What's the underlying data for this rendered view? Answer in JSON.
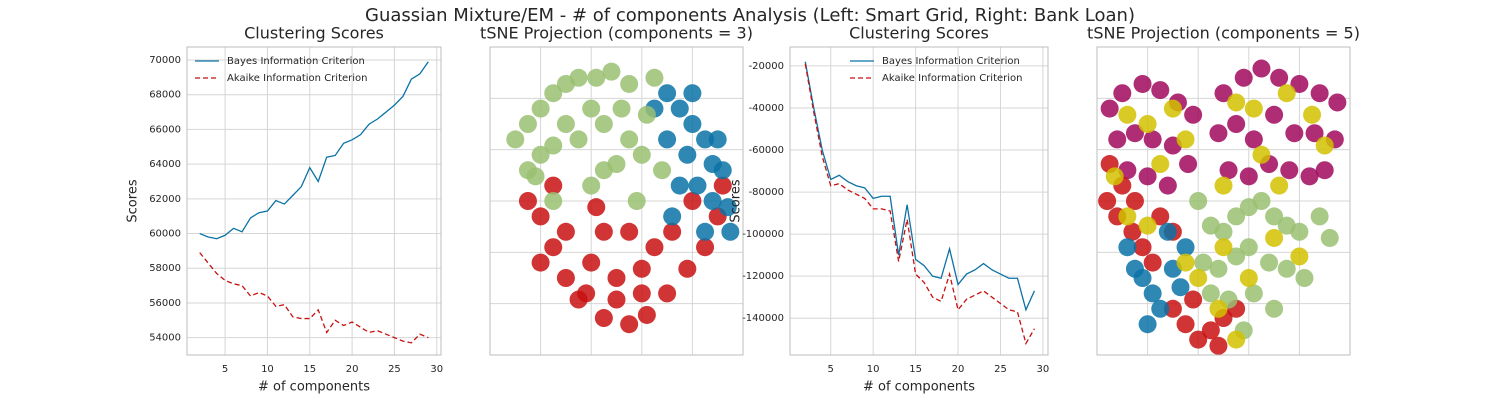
{
  "title": "Guassian Mixture/EM - # of components Analysis (Left: Smart Grid, Right: Bank Loan)",
  "chart_data": [
    {
      "type": "line",
      "title": "Clustering Scores",
      "xlabel": "# of components",
      "ylabel": "Scores",
      "x": [
        2,
        3,
        4,
        5,
        6,
        7,
        8,
        9,
        10,
        11,
        12,
        13,
        14,
        15,
        16,
        17,
        18,
        19,
        20,
        21,
        22,
        23,
        24,
        25,
        26,
        27,
        28,
        29
      ],
      "series": [
        {
          "name": "Bayes Information Criterion",
          "color": "#0b72a6",
          "linestyle": "solid",
          "values": [
            60000,
            59800,
            59700,
            59900,
            60300,
            60100,
            60900,
            61200,
            61300,
            61900,
            61700,
            62200,
            62700,
            63800,
            63000,
            64400,
            64500,
            65200,
            65400,
            65700,
            66300,
            66600,
            67000,
            67400,
            67900,
            68900,
            69200,
            69900
          ]
        },
        {
          "name": "Akaike Information Criterion",
          "color": "#c81010",
          "linestyle": "dashed",
          "values": [
            58900,
            58300,
            57700,
            57300,
            57100,
            57000,
            56400,
            56600,
            56400,
            55800,
            55900,
            55200,
            55100,
            55100,
            55600,
            54300,
            55000,
            54700,
            54900,
            54600,
            54300,
            54400,
            54200,
            54000,
            53800,
            53700,
            54200,
            54000
          ]
        }
      ],
      "xlim": [
        0.5,
        30.5
      ],
      "xticks": [
        5,
        10,
        15,
        20,
        25,
        30
      ],
      "ylim": [
        53000,
        70750
      ],
      "yticks": [
        54000,
        56000,
        58000,
        60000,
        62000,
        64000,
        66000,
        68000,
        70000
      ],
      "grid": true,
      "legend": "upper left"
    },
    {
      "type": "scatter",
      "title": "tSNE Projection (components = 3)",
      "xlim": [
        0,
        100
      ],
      "ylim": [
        0,
        100
      ],
      "series": [
        {
          "color": "#c81010",
          "x": [
            20,
            25,
            30,
            35,
            45,
            55,
            62,
            70,
            78,
            85,
            90,
            40,
            50,
            60,
            30,
            45,
            55,
            65,
            72,
            25,
            15,
            38,
            50,
            80,
            92,
            20,
            60,
            42
          ],
          "y": [
            45,
            35,
            25,
            18,
            12,
            10,
            13,
            20,
            28,
            35,
            45,
            30,
            25,
            28,
            40,
            40,
            40,
            35,
            40,
            55,
            50,
            20,
            18,
            50,
            55,
            30,
            20,
            48
          ]
        },
        {
          "color": "#0b72a6",
          "x": [
            70,
            75,
            80,
            85,
            88,
            92,
            90,
            78,
            82,
            88,
            94,
            75,
            70,
            65,
            80,
            95,
            85,
            72
          ],
          "y": [
            85,
            80,
            75,
            70,
            62,
            60,
            70,
            65,
            55,
            50,
            48,
            55,
            70,
            80,
            85,
            40,
            40,
            45
          ]
        },
        {
          "color": "#9abf72",
          "x": [
            10,
            15,
            20,
            25,
            30,
            35,
            42,
            48,
            40,
            30,
            20,
            15,
            25,
            35,
            45,
            52,
            55,
            50,
            60,
            58,
            45,
            40,
            62,
            68,
            25,
            18,
            55,
            65
          ],
          "y": [
            70,
            75,
            80,
            85,
            88,
            90,
            90,
            92,
            80,
            75,
            65,
            60,
            68,
            70,
            75,
            80,
            70,
            62,
            65,
            50,
            60,
            55,
            78,
            60,
            50,
            58,
            88,
            90
          ]
        }
      ]
    },
    {
      "type": "line",
      "title": "Clustering Scores",
      "xlabel": "# of components",
      "ylabel": "Scores",
      "x": [
        2,
        3,
        4,
        5,
        6,
        7,
        8,
        9,
        10,
        11,
        12,
        13,
        14,
        15,
        16,
        17,
        18,
        19,
        20,
        21,
        22,
        23,
        24,
        25,
        26,
        27,
        28,
        29
      ],
      "series": [
        {
          "name": "Bayes Information Criterion",
          "color": "#0b72a6",
          "linestyle": "solid",
          "values": [
            -18000,
            -40000,
            -60000,
            -74000,
            -72000,
            -75000,
            -77000,
            -78000,
            -83000,
            -82000,
            -82000,
            -110000,
            -86000,
            -112000,
            -115000,
            -120000,
            -121000,
            -107000,
            -124000,
            -119000,
            -117000,
            -114000,
            -117000,
            -119000,
            -121000,
            -121000,
            -136000,
            -127000
          ]
        },
        {
          "name": "Akaike Information Criterion",
          "color": "#c81010",
          "linestyle": "dashed",
          "values": [
            -19000,
            -42000,
            -63000,
            -77000,
            -76000,
            -79000,
            -81000,
            -83000,
            -88000,
            -88000,
            -89000,
            -113000,
            -93000,
            -119000,
            -123000,
            -130000,
            -132000,
            -119000,
            -136000,
            -131000,
            -129000,
            -127000,
            -130000,
            -133000,
            -136000,
            -137000,
            -152000,
            -145000
          ]
        }
      ],
      "xlim": [
        0.2,
        30.6
      ],
      "xticks": [
        5,
        10,
        15,
        20,
        25,
        30
      ],
      "ylim": [
        -157500,
        -11000
      ],
      "yticks": [
        -140000,
        -120000,
        -100000,
        -80000,
        -60000,
        -40000,
        -20000
      ],
      "grid": true,
      "legend": "upper right"
    },
    {
      "type": "scatter",
      "title": "tSNE Projection (components = 5)",
      "xlim": [
        0,
        100
      ],
      "ylim": [
        0,
        100
      ],
      "series": [
        {
          "color": "#a0085c",
          "x": [
            5,
            10,
            18,
            25,
            32,
            38,
            8,
            15,
            22,
            30,
            36,
            12,
            20,
            28,
            50,
            58,
            65,
            72,
            80,
            88,
            95,
            48,
            55,
            62,
            70,
            78,
            86,
            94,
            52,
            60,
            68,
            76,
            84,
            90
          ],
          "y": [
            80,
            85,
            88,
            86,
            82,
            78,
            70,
            72,
            70,
            68,
            62,
            60,
            58,
            55,
            85,
            90,
            93,
            90,
            88,
            85,
            82,
            72,
            75,
            70,
            78,
            72,
            72,
            70,
            60,
            58,
            62,
            60,
            58,
            60
          ]
        },
        {
          "color": "#c81010",
          "x": [
            5,
            10,
            15,
            8,
            14,
            18,
            22,
            25,
            30,
            4,
            30,
            35,
            40,
            45,
            50,
            55,
            38,
            48
          ],
          "y": [
            62,
            55,
            50,
            45,
            40,
            35,
            30,
            45,
            40,
            50,
            15,
            10,
            5,
            8,
            12,
            15,
            18,
            3
          ]
        },
        {
          "color": "#0b72a6",
          "x": [
            12,
            18,
            22,
            25,
            30,
            35,
            28,
            20,
            15,
            33
          ],
          "y": [
            35,
            25,
            20,
            15,
            28,
            35,
            40,
            10,
            28,
            22
          ]
        },
        {
          "color": "#9abf72",
          "x": [
            40,
            45,
            50,
            55,
            60,
            65,
            70,
            75,
            80,
            88,
            92,
            42,
            48,
            55,
            60,
            68,
            75,
            82,
            45,
            52,
            62,
            70,
            58
          ],
          "y": [
            50,
            42,
            40,
            45,
            48,
            50,
            45,
            42,
            40,
            45,
            38,
            30,
            28,
            32,
            35,
            30,
            28,
            25,
            20,
            18,
            20,
            15,
            8
          ]
        },
        {
          "color": "#d4c100",
          "x": [
            12,
            20,
            30,
            35,
            55,
            62,
            75,
            85,
            90,
            65,
            50,
            7,
            12,
            35,
            40,
            50,
            60,
            70,
            80,
            55,
            48,
            25,
            72,
            20
          ],
          "y": [
            78,
            75,
            80,
            70,
            82,
            80,
            85,
            78,
            68,
            65,
            55,
            58,
            45,
            30,
            25,
            35,
            25,
            38,
            32,
            5,
            15,
            62,
            55,
            42
          ]
        }
      ]
    }
  ]
}
